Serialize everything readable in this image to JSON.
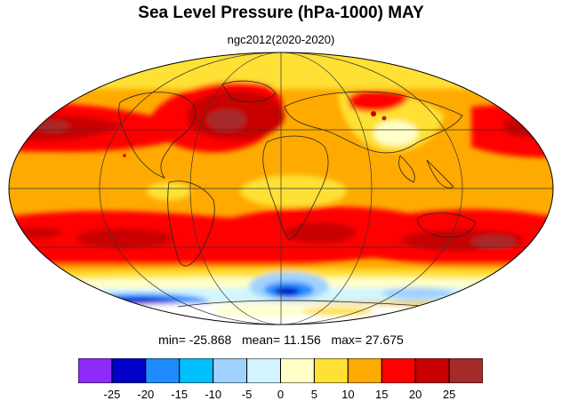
{
  "title": "Sea Level Pressure (hPa-1000) MAY",
  "subtitle": "ngc2012(2020-2020)",
  "stats": {
    "min_label": "min=",
    "min": "-25.868",
    "mean_label": "mean=",
    "mean": "11.156",
    "max_label": "max=",
    "max": "27.675"
  },
  "colorbar": {
    "colors": [
      "#8f2bfa",
      "#0000c8",
      "#1e8cff",
      "#00bfff",
      "#a0d2ff",
      "#d2f5ff",
      "#ffffc8",
      "#ffe135",
      "#ffaa00",
      "#ff0000",
      "#c80000",
      "#a52a2a"
    ],
    "labels": [
      "-25",
      "-20",
      "-15",
      "-10",
      "-5",
      "0",
      "5",
      "10",
      "15",
      "20",
      "25"
    ]
  },
  "map": {
    "projection": "Mollweide",
    "field": "sea level pressure anomaly (hPa-1000)",
    "month": "MAY"
  }
}
